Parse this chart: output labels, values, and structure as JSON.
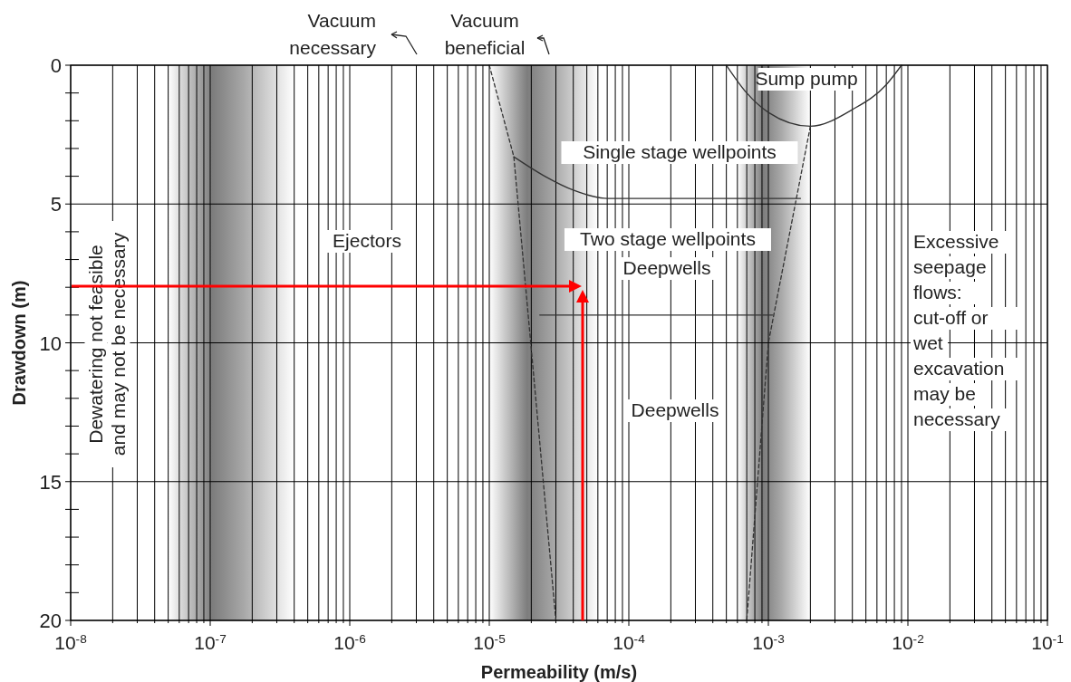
{
  "chart_data": {
    "type": "line",
    "xlabel": "Permeability (m/s)",
    "ylabel": "Drawdown (m)",
    "log": "x",
    "grid": true,
    "xlim": [
      1e-08,
      0.1
    ],
    "ylim": [
      20,
      0
    ],
    "xticks": [
      {
        "value": 1e-08,
        "label": "10$^{-8}$"
      },
      {
        "value": 2e-08,
        "label": null
      },
      {
        "value": 3e-08,
        "label": null
      },
      {
        "value": 4e-08,
        "label": null
      },
      {
        "value": 5e-08,
        "label": null
      },
      {
        "value": 6e-08,
        "label": null
      },
      {
        "value": 7e-08,
        "label": null
      },
      {
        "value": 8e-08,
        "label": null
      },
      {
        "value": 9e-08,
        "label": null
      },
      {
        "value": 1e-07,
        "label": "10$^{-7}$"
      },
      {
        "value": 2e-07,
        "label": null
      },
      {
        "value": 3e-07,
        "label": null
      },
      {
        "value": 4e-07,
        "label": null
      },
      {
        "value": 5e-07,
        "label": null
      },
      {
        "value": 6e-07,
        "label": null
      },
      {
        "value": 7e-07,
        "label": null
      },
      {
        "value": 8e-07,
        "label": null
      },
      {
        "value": 9e-07,
        "label": null
      },
      {
        "value": 1e-06,
        "label": "10$^{-6}$"
      },
      {
        "value": 2e-06,
        "label": null
      },
      {
        "value": 3e-06,
        "label": null
      },
      {
        "value": 4e-06,
        "label": null
      },
      {
        "value": 5e-06,
        "label": null
      },
      {
        "value": 6e-06,
        "label": null
      },
      {
        "value": 7e-06,
        "label": null
      },
      {
        "value": 8e-06,
        "label": null
      },
      {
        "value": 9e-06,
        "label": null
      },
      {
        "value": 1e-05,
        "label": "10$^{-5}$"
      },
      {
        "value": 2e-05,
        "label": null
      },
      {
        "value": 3e-05,
        "label": null
      },
      {
        "value": 4e-05,
        "label": null
      },
      {
        "value": 5e-05,
        "label": null
      },
      {
        "value": 6e-05,
        "label": null
      },
      {
        "value": 7e-05,
        "label": null
      },
      {
        "value": 8e-05,
        "label": null
      },
      {
        "value": 9e-05,
        "label": null
      },
      {
        "value": 0.0001,
        "label": "10$^{-4}$"
      },
      {
        "value": 0.0002,
        "label": null
      },
      {
        "value": 0.0003,
        "label": null
      },
      {
        "value": 0.0004,
        "label": null
      },
      {
        "value": 0.0005,
        "label": null
      },
      {
        "value": 0.0006,
        "label": null
      },
      {
        "value": 0.0007,
        "label": null
      },
      {
        "value": 0.0008,
        "label": null
      },
      {
        "value": 0.0009,
        "label": null
      },
      {
        "value": 0.001,
        "label": "10$^{-3}$"
      },
      {
        "value": 0.002,
        "label": null
      },
      {
        "value": 0.003,
        "label": null
      },
      {
        "value": 0.004,
        "label": null
      },
      {
        "value": 0.005,
        "label": null
      },
      {
        "value": 0.006,
        "label": null
      },
      {
        "value": 0.007,
        "label": null
      },
      {
        "value": 0.008,
        "label": null
      },
      {
        "value": 0.009,
        "label": null
      },
      {
        "value": 0.01,
        "label": "10$^{-2}$"
      },
      {
        "value": 0.02,
        "label": null
      },
      {
        "value": 0.03,
        "label": null
      },
      {
        "value": 0.04,
        "label": null
      },
      {
        "value": 0.05,
        "label": null
      },
      {
        "value": 0.06,
        "label": null
      },
      {
        "value": 0.07,
        "label": null
      },
      {
        "value": 0.08,
        "label": null
      },
      {
        "value": 0.09,
        "label": null
      },
      {
        "value": 0.1,
        "label": "10$^{-1}$"
      }
    ],
    "yticks": [
      0,
      {
        "value": 1,
        "label": null
      },
      {
        "value": 2,
        "label": null
      },
      {
        "value": 3,
        "label": null
      },
      {
        "value": 4,
        "label": null
      },
      5,
      {
        "value": 6,
        "label": null
      },
      {
        "value": 7,
        "label": null
      },
      {
        "value": 8,
        "label": null
      },
      {
        "value": 9,
        "label": null
      },
      10,
      {
        "value": 11,
        "label": null
      },
      {
        "value": 12,
        "label": null
      },
      {
        "value": 13,
        "label": null
      },
      {
        "value": 14,
        "label": null
      },
      15,
      {
        "value": 16,
        "label": null
      },
      {
        "value": 17,
        "label": null
      },
      {
        "value": 18,
        "label": null
      },
      {
        "value": 19,
        "label": null
      },
      20
    ],
    "bands": [
      {
        "axis": "x",
        "from": 5e-08,
        "to": 4e-07,
        "color": "#6e6e6e"
      },
      {
        "axis": "x",
        "from": 1e-05,
        "to": 6e-05,
        "color": "#6e6e6e"
      },
      {
        "axis": "x",
        "from": 0.0006,
        "to": 0.002,
        "color": "#6e6e6e"
      }
    ],
    "series": [
      {
        "color": "#333333",
        "line_style": "dashed",
        "x": [
          1e-05,
          1.5e-05,
          3e-05
        ],
        "values": [
          0,
          3.3,
          20
        ]
      },
      {
        "color": "#333333",
        "line_style": "dashed",
        "x": [
          0.002,
          0.001,
          0.0007
        ],
        "values": [
          2.2,
          10,
          20
        ]
      },
      {
        "color": "#333333",
        "line_style": "solid",
        "x": [
          0.0005,
          0.0007,
          0.001,
          0.002,
          0.004,
          0.007,
          0.009
        ],
        "values": [
          0,
          1.0,
          1.7,
          2.2,
          1.6,
          0.7,
          0
        ]
      },
      {
        "color": "#333333",
        "line_style": "solid",
        "x": [
          1.5e-05,
          2.5e-05,
          4e-05,
          7e-05,
          0.0017
        ],
        "values": [
          3.3,
          4.0,
          4.5,
          4.8,
          4.8
        ]
      },
      {
        "color": "#333333",
        "line_style": "solid",
        "x": [
          2.3e-05,
          0.00107
        ],
        "values": [
          9,
          9
        ]
      }
    ],
    "annotations": [
      "Vacuum\nnecessary",
      "Vacuum\nbeneficial",
      "Dewatering not feasible\nand may not be necessary",
      "Ejectors",
      "Sump pump",
      "Single stage wellpoints",
      "Two stage wellpoints",
      "Deepwells",
      "Deepwells",
      "Excessive\nseepage\nflows:\ncut-off or\nwet\nexcavation\nmay be\nnecessary"
    ]
  }
}
